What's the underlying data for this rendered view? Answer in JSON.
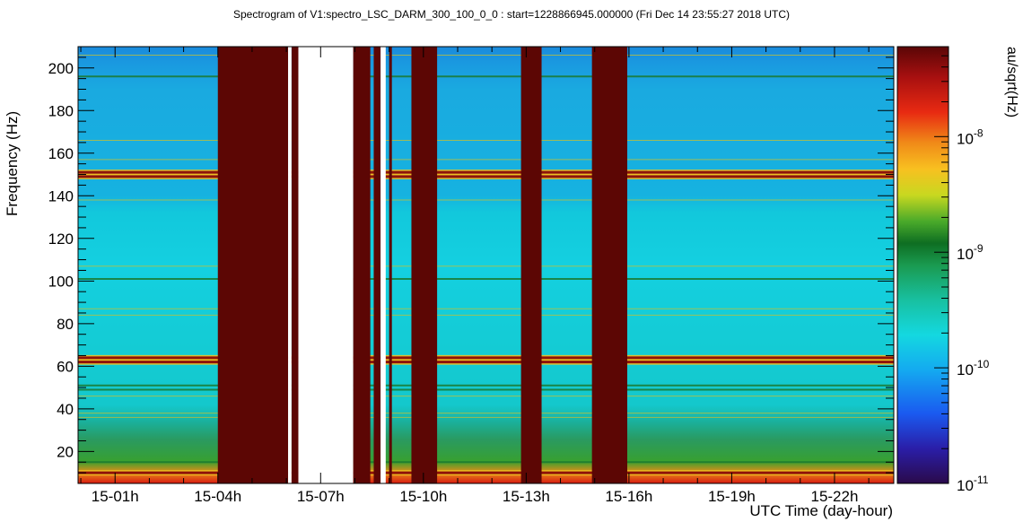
{
  "chart_data": {
    "type": "heatmap",
    "title": "Spectrogram of V1:spectro_LSC_DARM_300_100_0_0 : start=1228866945.000000 (Fri Dec 14 23:55:27 2018 UTC)",
    "xlabel": "UTC Time (day-hour)",
    "ylabel": "Frequency (Hz)",
    "zlabel": "au/sqrt(Hz)",
    "x_range_hours": [
      23.92,
      47.73
    ],
    "ylim": [
      5,
      210
    ],
    "zlim": [
      1e-11,
      6e-08
    ],
    "z_scale": "log",
    "x_ticks": [
      {
        "label": "15-01h",
        "value": 25
      },
      {
        "label": "15-04h",
        "value": 28
      },
      {
        "label": "15-07h",
        "value": 31
      },
      {
        "label": "15-10h",
        "value": 34
      },
      {
        "label": "15-13h",
        "value": 37
      },
      {
        "label": "15-16h",
        "value": 40
      },
      {
        "label": "15-19h",
        "value": 43
      },
      {
        "label": "15-22h",
        "value": 46
      }
    ],
    "y_ticks": [
      20,
      40,
      60,
      80,
      100,
      120,
      140,
      160,
      180,
      200
    ],
    "z_ticks": [
      {
        "label": "10",
        "exp": "-11",
        "value": 1e-11
      },
      {
        "label": "10",
        "exp": "-10",
        "value": 1e-10
      },
      {
        "label": "10",
        "exp": "-9",
        "value": 1e-09
      },
      {
        "label": "10",
        "exp": "-8",
        "value": 1e-08
      }
    ],
    "saturated_intervals_hours": [
      [
        28.0,
        30.05
      ],
      [
        30.15,
        30.35
      ],
      [
        31.95,
        32.45
      ],
      [
        32.55,
        32.75
      ],
      [
        33.0,
        33.08
      ],
      [
        33.65,
        34.4
      ],
      [
        36.85,
        37.45
      ],
      [
        38.92,
        39.95
      ]
    ],
    "no_data_intervals_hours": [
      [
        30.05,
        30.15
      ],
      [
        30.35,
        31.95
      ],
      [
        32.75,
        32.9
      ]
    ],
    "spectral_lines_hz": [
      {
        "f": 10,
        "amp": "high"
      },
      {
        "f": 15,
        "amp": "med"
      },
      {
        "f": 36,
        "amp": "low"
      },
      {
        "f": 38,
        "amp": "low"
      },
      {
        "f": 46,
        "amp": "low"
      },
      {
        "f": 49,
        "amp": "med"
      },
      {
        "f": 51,
        "amp": "med"
      },
      {
        "f": 62,
        "amp": "high"
      },
      {
        "f": 64,
        "amp": "high"
      },
      {
        "f": 84,
        "amp": "low"
      },
      {
        "f": 87,
        "amp": "low"
      },
      {
        "f": 101,
        "amp": "med"
      },
      {
        "f": 107,
        "amp": "low"
      },
      {
        "f": 138,
        "amp": "low"
      },
      {
        "f": 149,
        "amp": "high"
      },
      {
        "f": 151,
        "amp": "high"
      },
      {
        "f": 157,
        "amp": "low"
      },
      {
        "f": 166,
        "amp": "low"
      },
      {
        "f": 196,
        "amp": "med"
      },
      {
        "f": 206,
        "amp": "low"
      }
    ]
  }
}
